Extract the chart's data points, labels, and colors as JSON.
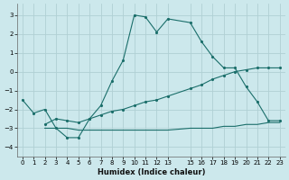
{
  "xlabel": "Humidex (Indice chaleur)",
  "bg_color": "#cce8ec",
  "grid_color": "#b0d0d4",
  "line_color": "#1a6e6a",
  "xlim": [
    -0.5,
    23.5
  ],
  "ylim": [
    -4.5,
    3.6
  ],
  "xticks": [
    0,
    1,
    2,
    3,
    4,
    5,
    6,
    7,
    8,
    9,
    10,
    11,
    12,
    13,
    15,
    16,
    17,
    18,
    19,
    20,
    21,
    22,
    23
  ],
  "yticks": [
    -4,
    -3,
    -2,
    -1,
    0,
    1,
    2,
    3
  ],
  "line1_x": [
    0,
    1,
    2,
    3,
    4,
    5,
    6,
    7,
    8,
    9,
    10,
    11,
    12,
    13,
    15,
    16,
    17,
    18,
    19,
    20,
    21,
    22,
    23
  ],
  "line1_y": [
    -1.5,
    -2.2,
    -2.0,
    -3.0,
    -3.5,
    -3.5,
    -2.5,
    -1.8,
    -0.5,
    0.6,
    3.0,
    2.9,
    2.1,
    2.8,
    2.6,
    1.6,
    0.8,
    0.2,
    0.2,
    -0.8,
    -1.6,
    -2.6,
    -2.6
  ],
  "line2_x": [
    2,
    3,
    4,
    5,
    6,
    7,
    8,
    9,
    10,
    11,
    12,
    13,
    15,
    16,
    17,
    18,
    19,
    20,
    21,
    22,
    23
  ],
  "line2_y": [
    -2.8,
    -2.5,
    -2.6,
    -2.7,
    -2.5,
    -2.3,
    -2.1,
    -2.0,
    -1.8,
    -1.6,
    -1.5,
    -1.3,
    -0.9,
    -0.7,
    -0.4,
    -0.2,
    0.0,
    0.1,
    0.2,
    0.2,
    0.2
  ],
  "line3_x": [
    2,
    3,
    4,
    5,
    6,
    7,
    8,
    9,
    10,
    11,
    12,
    13,
    15,
    16,
    17,
    18,
    19,
    20,
    21,
    22,
    23
  ],
  "line3_y": [
    -3.0,
    -3.0,
    -3.0,
    -3.1,
    -3.1,
    -3.1,
    -3.1,
    -3.1,
    -3.1,
    -3.1,
    -3.1,
    -3.1,
    -3.0,
    -3.0,
    -3.0,
    -2.9,
    -2.9,
    -2.8,
    -2.8,
    -2.7,
    -2.7
  ]
}
